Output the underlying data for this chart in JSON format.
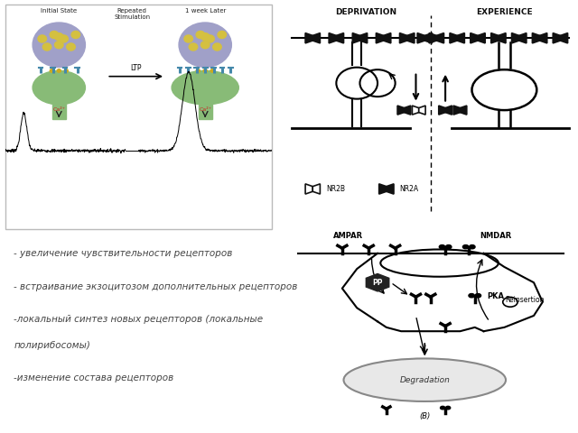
{
  "background_color": "#ffffff",
  "text_lines": [
    "- увеличение чувствительности рецепторов",
    "",
    "- встраивание экзоцитозом дополнительных рецепторов",
    "",
    "-локальный синтез новых рецепторов (локальные",
    "полирибосомы)",
    "",
    "-изменение состава рецепторов"
  ],
  "text_color": "#444444",
  "ltp_label": "LTP",
  "initial_state_label": "Initial State",
  "repeated_label": "Repeated\nStimulation",
  "week_label": "1 week Later",
  "deprivation_label": "DEPRIVATION",
  "experience_label": "EXPERIENCE",
  "nr2b_label": "NR2B",
  "nr2a_label": "NR2A",
  "ca2_label": "Ca²⁺",
  "ampar_label": "AMPAR",
  "nmdar_label": "NMDAR",
  "reinsertion_label": "Reinsertion",
  "degradation_label": "Degradation",
  "pp_label": "PP",
  "pka_label": "PKA",
  "b_label": "(B)"
}
